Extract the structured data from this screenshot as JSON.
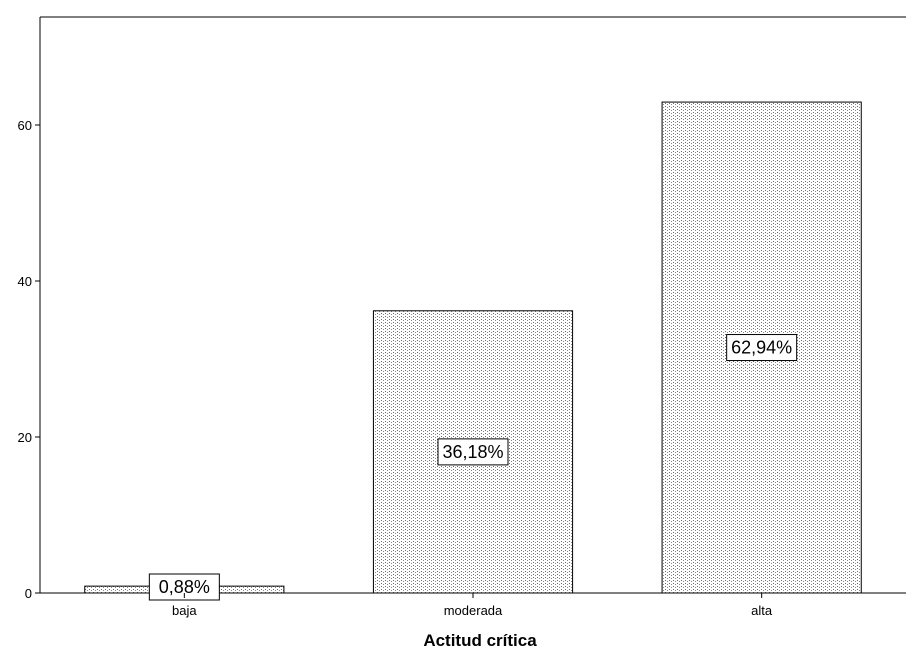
{
  "chart_data": {
    "type": "bar",
    "categories": [
      "baja",
      "moderada",
      "alta"
    ],
    "values": [
      0.88,
      36.18,
      62.94
    ],
    "data_labels": [
      "0,88%",
      "36,18%",
      "62,94%"
    ],
    "xlabel": "Actitud crítica",
    "ylabel": "",
    "ylim": [
      0,
      75
    ],
    "yticks": [
      0,
      20,
      40,
      60
    ],
    "ytick_labels": [
      "0",
      "20",
      "40",
      "60"
    ],
    "grid": false,
    "bar_fill": "#ffffff",
    "bar_pattern_color": "#6a6a6a",
    "bar_stroke": "#000000"
  }
}
